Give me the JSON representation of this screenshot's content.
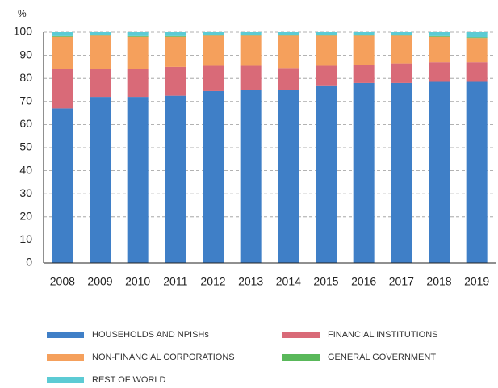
{
  "chart_data": {
    "type": "stacked_bar",
    "ylabel": "%",
    "categories": [
      "2008",
      "2009",
      "2010",
      "2011",
      "2012",
      "2013",
      "2014",
      "2015",
      "2016",
      "2017",
      "2018",
      "2019"
    ],
    "series": [
      {
        "name": "HOUSEHOLDS AND NPISHs",
        "color": "#3f7fc7",
        "values": [
          67,
          72,
          72,
          72.5,
          74.5,
          75,
          75,
          77,
          78,
          78,
          78.5,
          78.5
        ]
      },
      {
        "name": "FINANCIAL INSTITUTIONS",
        "color": "#d96a78",
        "values": [
          17,
          12,
          12,
          12.5,
          11,
          10.5,
          9.5,
          8.5,
          8,
          8.5,
          8.5,
          8.5
        ]
      },
      {
        "name": "NON-FINANCIAL CORPORATIONS",
        "color": "#f5a05c",
        "values": [
          14,
          14.5,
          14,
          13,
          13,
          13,
          14,
          13,
          12.5,
          12,
          11,
          10.5
        ]
      },
      {
        "name": "GENERAL GOVERNMENT",
        "color": "#59b85a",
        "values": [
          0.3,
          0.3,
          0.3,
          0.3,
          0.3,
          0.3,
          0.3,
          0.3,
          0.3,
          0.3,
          0.3,
          0.3
        ]
      },
      {
        "name": "REST OF WORLD",
        "color": "#5ccbd4",
        "values": [
          1.7,
          1.2,
          1.7,
          1.7,
          1.2,
          1.2,
          1.2,
          1.2,
          1.2,
          1.2,
          1.7,
          2.2
        ]
      }
    ],
    "ylim": [
      0,
      100
    ],
    "yticks": [
      0,
      10,
      20,
      30,
      40,
      50,
      60,
      70,
      80,
      90,
      100
    ],
    "grid": true
  }
}
